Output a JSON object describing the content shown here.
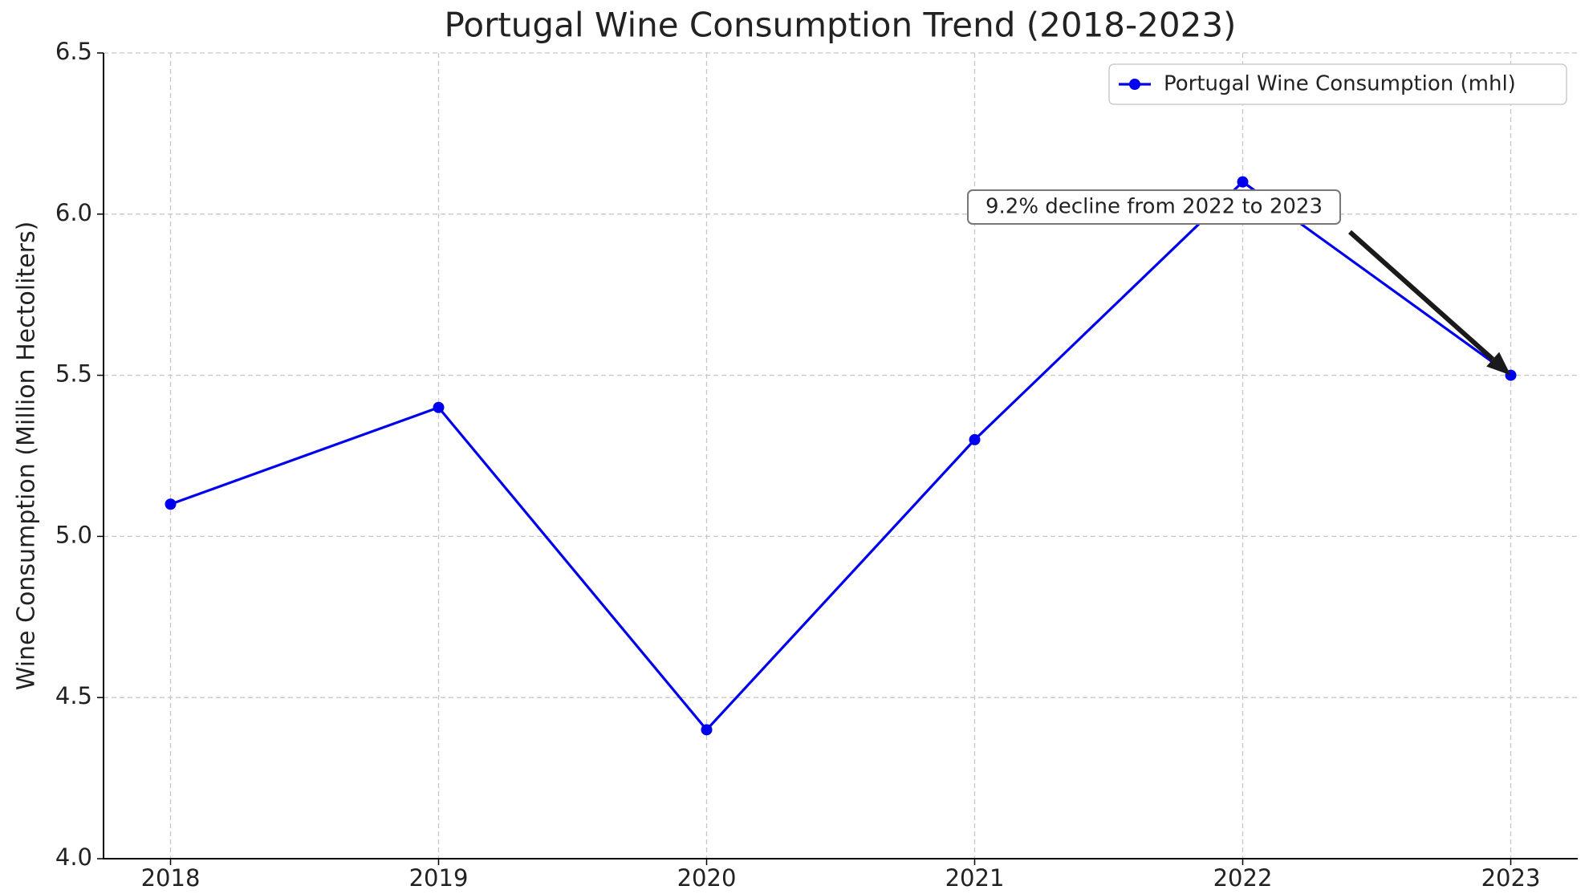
{
  "chart_data": {
    "type": "line",
    "title": "Portugal Wine Consumption Trend (2018-2023)",
    "y_label": "Wine Consumption (Million Hectoliters)",
    "x": [
      2018,
      2019,
      2020,
      2021,
      2022,
      2023
    ],
    "series": [
      {
        "name": "Portugal Wine Consumption (mhl)",
        "color": "#0000ee",
        "values": [
          5.1,
          5.4,
          4.4,
          5.3,
          6.1,
          5.5
        ]
      }
    ],
    "xlim": [
      2017.75,
      2023.25
    ],
    "xticks": [
      2018,
      2019,
      2020,
      2021,
      2022,
      2023
    ],
    "ylim": [
      4.0,
      6.5
    ],
    "yticks": [
      {
        "value": 4.0,
        "label": "4.0"
      },
      4.5,
      {
        "value": 5.0,
        "label": "5.0"
      },
      5.5,
      {
        "value": 6.0,
        "label": "6.0"
      },
      6.5
    ],
    "grid": true,
    "legend": "upper right",
    "annotation": "9.2% decline from 2022 to 2023"
  }
}
